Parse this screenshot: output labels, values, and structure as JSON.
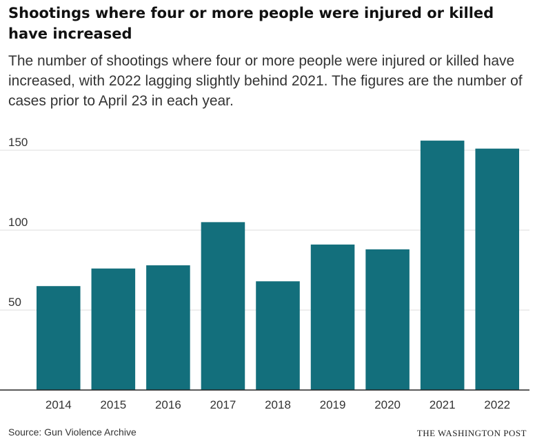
{
  "chart_data": {
    "type": "bar",
    "title": "Shootings where four or more people were injured or killed have increased",
    "subtitle": "The number of shootings where four or more people were injured or killed have increased, with 2022 lagging slightly behind 2021. The figures are the number of cases prior to April 23 in each year.",
    "categories": [
      "2014",
      "2015",
      "2016",
      "2017",
      "2018",
      "2019",
      "2020",
      "2021",
      "2022"
    ],
    "values": [
      65,
      76,
      78,
      105,
      68,
      91,
      88,
      156,
      151
    ],
    "ylim": [
      0,
      150
    ],
    "yticks": [
      50,
      100,
      150
    ],
    "xlabel": "",
    "ylabel": "",
    "grid": true,
    "bar_color": "#136f7c",
    "source": "Source: Gun Violence Archive",
    "credit": "THE WASHINGTON POST"
  }
}
